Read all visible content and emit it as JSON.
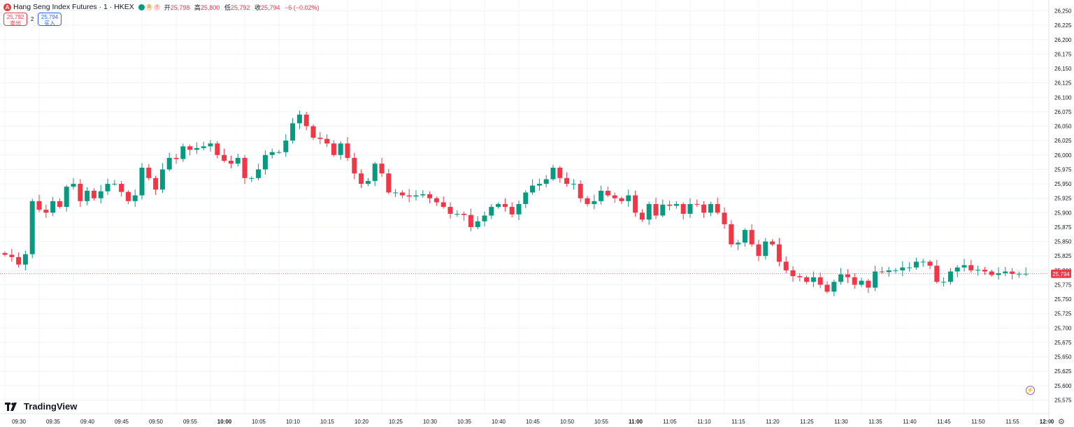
{
  "header": {
    "logo_letter": "A",
    "title": "Hang Seng Index Futures · 1 · HKEX",
    "badge_d": "D",
    "badge_alert": "!",
    "open_label": "开",
    "open_value": "25,798",
    "high_label": "高",
    "high_value": "25,800",
    "low_label": "低",
    "low_value": "25,792",
    "close_label": "收",
    "close_value": "25,794",
    "change": "−6 (−0.02%)"
  },
  "trade": {
    "sell_price": "25,792",
    "sell_label": "卖出",
    "spread": "2",
    "buy_price": "25,794",
    "buy_label": "买入"
  },
  "brand": "TradingView",
  "colors": {
    "up": "#089981",
    "down": "#f23645",
    "grid": "#f0f3fa",
    "axis_text": "#131722"
  },
  "chart_data": {
    "type": "candlestick",
    "x_interval_minutes": 1,
    "x_start": "09:30",
    "x_end": "11:59",
    "x_ticks": [
      "09:30",
      "09:35",
      "09:40",
      "09:45",
      "09:50",
      "09:55",
      "10:00",
      "10:05",
      "10:10",
      "10:15",
      "10:20",
      "10:25",
      "10:30",
      "10:35",
      "10:40",
      "10:45",
      "10:50",
      "10:55",
      "11:00",
      "11:05",
      "11:10",
      "11:15",
      "11:20",
      "11:25",
      "11:30",
      "11:35",
      "11:40",
      "11:45",
      "11:50",
      "11:55",
      "12:00"
    ],
    "bold_ticks": [
      "10:00",
      "11:00",
      "12:00"
    ],
    "y_ticks": [
      "26,250",
      "26,225",
      "26,200",
      "26,175",
      "26,150",
      "26,125",
      "26,100",
      "26,075",
      "26,050",
      "26,025",
      "26,000",
      "25,975",
      "25,950",
      "25,925",
      "25,900",
      "25,875",
      "25,850",
      "25,825",
      "25,800",
      "25,775",
      "25,750",
      "25,725",
      "25,700",
      "25,675",
      "25,650",
      "25,625",
      "25,600",
      "25,575"
    ],
    "ylim": [
      25570,
      26262
    ],
    "last_price": 25794,
    "last_price_label": "25,794",
    "grid": true,
    "closes": [
      25827,
      25823,
      25810,
      25828,
      25920,
      25905,
      25900,
      25920,
      25910,
      25945,
      25950,
      25920,
      25938,
      25925,
      25937,
      25950,
      25950,
      25936,
      25920,
      25930,
      25978,
      25960,
      25940,
      25975,
      25995,
      25993,
      26015,
      26009,
      26012,
      26015,
      26020,
      26000,
      25990,
      25985,
      25995,
      25960,
      25960,
      25975,
      26000,
      26005,
      26005,
      26025,
      26055,
      26070,
      26050,
      26030,
      26028,
      26020,
      26000,
      26020,
      25995,
      25968,
      25950,
      25955,
      25985,
      25968,
      25935,
      25935,
      25930,
      25928,
      25930,
      25932,
      25925,
      25918,
      25910,
      25898,
      25898,
      25896,
      25875,
      25885,
      25895,
      25910,
      25915,
      25910,
      25897,
      25915,
      25935,
      25947,
      25950,
      25958,
      25978,
      25960,
      25950,
      25950,
      25925,
      25915,
      25920,
      25938,
      25930,
      25925,
      25920,
      25930,
      25900,
      25888,
      25915,
      25895,
      25914,
      25912,
      25915,
      25898,
      25915,
      25914,
      25900,
      25915,
      25900,
      25880,
      25845,
      25848,
      25870,
      25845,
      25825,
      25850,
      25845,
      25815,
      25800,
      25790,
      25788,
      25780,
      25788,
      25775,
      25763,
      25780,
      25793,
      25788,
      25775,
      25782,
      25770,
      25798,
      25797,
      25800,
      25800,
      25805,
      25805,
      25815,
      25815,
      25808,
      25780,
      25780,
      25798,
      25805,
      25809,
      25800,
      25801,
      25798,
      25792,
      25795,
      25798,
      25794,
      25794,
      25794
    ],
    "volumes_note": ""
  }
}
